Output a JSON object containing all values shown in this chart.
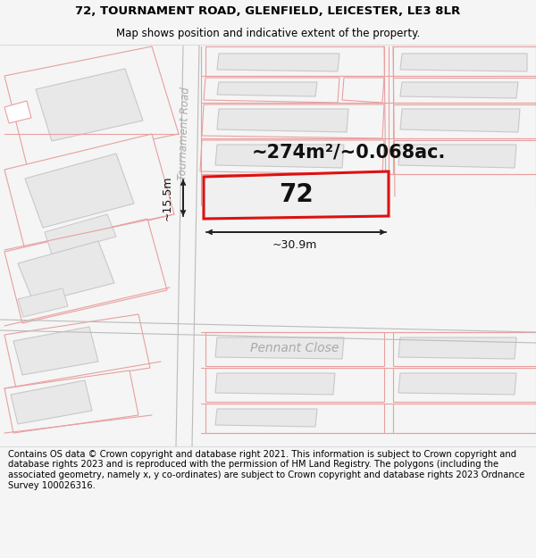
{
  "title_line1": "72, TOURNAMENT ROAD, GLENFIELD, LEICESTER, LE3 8LR",
  "title_line2": "Map shows position and indicative extent of the property.",
  "footer_text": "Contains OS data © Crown copyright and database right 2021. This information is subject to Crown copyright and database rights 2023 and is reproduced with the permission of HM Land Registry. The polygons (including the associated geometry, namely x, y co-ordinates) are subject to Crown copyright and database rights 2023 Ordnance Survey 100026316.",
  "area_text": "~274m²/~0.068ac.",
  "number_label": "72",
  "width_label": "~30.9m",
  "height_label": "~15.5m",
  "road_label_1": "Tournament Road",
  "road_label_2": "Pennant Close",
  "bg_color": "#f5f5f5",
  "map_bg": "#ffffff",
  "building_fill": "#e8e8e8",
  "building_stroke": "#c8c8c8",
  "plot_fill": "#f0f0f0",
  "highlight_stroke": "#dd1111",
  "road_line_color": "#e8a0a0",
  "road_line_color2": "#dd4444",
  "dim_color": "#222222",
  "footer_bg": "#ffffff",
  "title_fontsize": 9.5,
  "subtitle_fontsize": 8.5,
  "area_fontsize": 15,
  "number_fontsize": 18,
  "road_fontsize": 9,
  "footer_fontsize": 7.2
}
